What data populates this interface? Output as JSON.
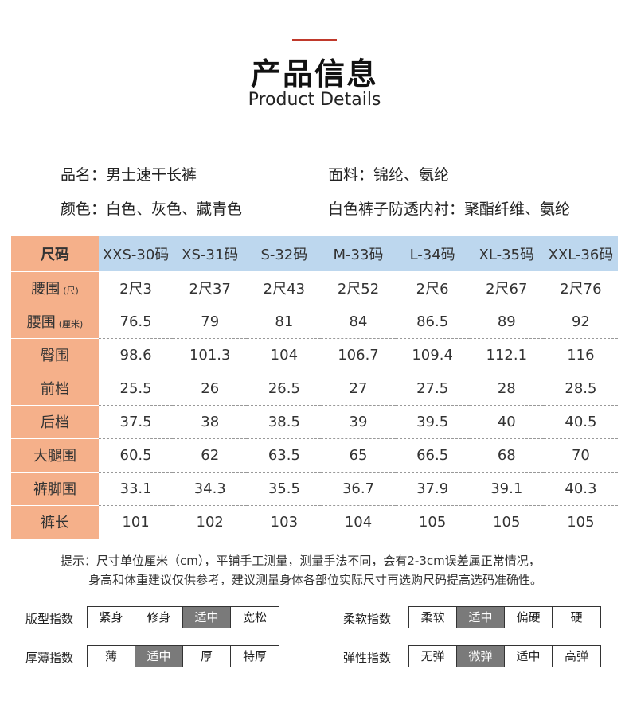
{
  "header": {
    "title_cn": "产品信息",
    "title_en": "Product Details"
  },
  "info": {
    "name": "品名：男士速干长裤",
    "fabric": "面料：锦纶、氨纶",
    "color": "颜色：白色、灰色、藏青色",
    "lining": "白色裤子防透内衬：聚酯纤维、氨纶"
  },
  "size_table": {
    "corner": "尺码",
    "sizes": [
      "XXS-30码",
      "XS-31码",
      "S-32码",
      "M-33码",
      "L-34码",
      "XL-35码",
      "XXL-36码"
    ],
    "rows": [
      {
        "label": "腰围",
        "unit": "(尺)",
        "values": [
          "2尺3",
          "2尺37",
          "2尺43",
          "2尺52",
          "2尺6",
          "2尺67",
          "2尺76"
        ]
      },
      {
        "label": "腰围",
        "unit": "(厘米)",
        "values": [
          "76.5",
          "79",
          "81",
          "84",
          "86.5",
          "89",
          "92"
        ]
      },
      {
        "label": "臀围",
        "unit": "",
        "values": [
          "98.6",
          "101.3",
          "104",
          "106.7",
          "109.4",
          "112.1",
          "116"
        ]
      },
      {
        "label": "前档",
        "unit": "",
        "values": [
          "25.5",
          "26",
          "26.5",
          "27",
          "27.5",
          "28",
          "28.5"
        ]
      },
      {
        "label": "后档",
        "unit": "",
        "values": [
          "37.5",
          "38",
          "38.5",
          "39",
          "39.5",
          "40",
          "40.5"
        ]
      },
      {
        "label": "大腿围",
        "unit": "",
        "values": [
          "60.5",
          "62",
          "63.5",
          "65",
          "66.5",
          "68",
          "70"
        ]
      },
      {
        "label": "裤脚围",
        "unit": "",
        "values": [
          "33.1",
          "34.3",
          "35.5",
          "36.7",
          "37.9",
          "39.1",
          "40.3"
        ]
      },
      {
        "label": "裤长",
        "unit": "",
        "values": [
          "101",
          "102",
          "103",
          "104",
          "105",
          "105",
          "105"
        ]
      }
    ]
  },
  "tips": {
    "line1": "提示：尺寸单位厘米（cm），平铺手工测量，测量手法不同，会有2-3cm误差属正常情况，",
    "line2": "身高和体重建议仅供参考，建议测量身体各部位实际尺寸再选购尺码提高选码准确性。"
  },
  "indices": {
    "fit": {
      "label": "版型指数",
      "options": [
        "紧身",
        "修身",
        "适中",
        "宽松"
      ],
      "active": 2
    },
    "softness": {
      "label": "柔软指数",
      "options": [
        "柔软",
        "适中",
        "偏硬",
        "硬"
      ],
      "active": 1
    },
    "thickness": {
      "label": "厚薄指数",
      "options": [
        "薄",
        "适中",
        "厚",
        "特厚"
      ],
      "active": 1
    },
    "elasticity": {
      "label": "弹性指数",
      "options": [
        "无弹",
        "微弹",
        "适中",
        "高弹"
      ],
      "active": 1
    }
  },
  "colors": {
    "accent_line": "#c0392b",
    "header_blue": "#bdd7ee",
    "rowhead_orange": "#f5b08a",
    "active_gray": "#7a7a7a"
  }
}
